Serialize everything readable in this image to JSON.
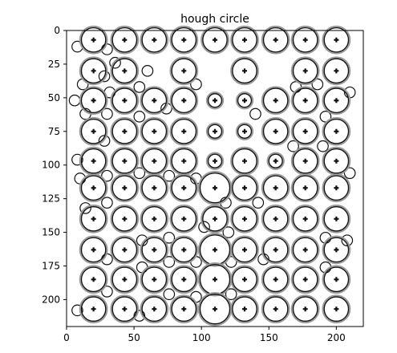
{
  "chart_data": {
    "type": "image",
    "title": "hough circle",
    "xlabel": "",
    "ylabel": "",
    "xlim": [
      0,
      220
    ],
    "ylim": [
      220,
      0
    ],
    "x_ticks": [
      0,
      50,
      100,
      150,
      200
    ],
    "y_ticks": [
      0,
      25,
      50,
      75,
      100,
      125,
      150,
      175,
      200
    ],
    "grid": false,
    "colors": {
      "ring": "#111111",
      "ring_faint": "#9a9a9a",
      "background": "#ffffff"
    },
    "circles": [
      {
        "x": 20,
        "y": 7,
        "r": 9
      },
      {
        "x": 43,
        "y": 7,
        "r": 9
      },
      {
        "x": 65,
        "y": 7,
        "r": 9
      },
      {
        "x": 87,
        "y": 7,
        "r": 9
      },
      {
        "x": 110,
        "y": 7,
        "r": 9
      },
      {
        "x": 132,
        "y": 7,
        "r": 9
      },
      {
        "x": 155,
        "y": 7,
        "r": 9
      },
      {
        "x": 177,
        "y": 7,
        "r": 9
      },
      {
        "x": 200,
        "y": 7,
        "r": 9
      },
      {
        "x": 20,
        "y": 30,
        "r": 9
      },
      {
        "x": 43,
        "y": 30,
        "r": 9
      },
      {
        "x": 87,
        "y": 30,
        "r": 9
      },
      {
        "x": 132,
        "y": 30,
        "r": 9
      },
      {
        "x": 177,
        "y": 30,
        "r": 9
      },
      {
        "x": 200,
        "y": 30,
        "r": 9
      },
      {
        "x": 20,
        "y": 52,
        "r": 9
      },
      {
        "x": 43,
        "y": 52,
        "r": 9
      },
      {
        "x": 65,
        "y": 52,
        "r": 9
      },
      {
        "x": 87,
        "y": 52,
        "r": 9
      },
      {
        "x": 110,
        "y": 52,
        "r": 5
      },
      {
        "x": 132,
        "y": 52,
        "r": 5
      },
      {
        "x": 155,
        "y": 52,
        "r": 9
      },
      {
        "x": 177,
        "y": 52,
        "r": 9
      },
      {
        "x": 200,
        "y": 52,
        "r": 9
      },
      {
        "x": 20,
        "y": 75,
        "r": 9
      },
      {
        "x": 43,
        "y": 75,
        "r": 9
      },
      {
        "x": 65,
        "y": 75,
        "r": 9
      },
      {
        "x": 87,
        "y": 75,
        "r": 9
      },
      {
        "x": 110,
        "y": 75,
        "r": 5
      },
      {
        "x": 132,
        "y": 75,
        "r": 5
      },
      {
        "x": 155,
        "y": 75,
        "r": 9
      },
      {
        "x": 177,
        "y": 75,
        "r": 9
      },
      {
        "x": 200,
        "y": 75,
        "r": 9
      },
      {
        "x": 20,
        "y": 97,
        "r": 9
      },
      {
        "x": 43,
        "y": 97,
        "r": 9
      },
      {
        "x": 65,
        "y": 97,
        "r": 9
      },
      {
        "x": 87,
        "y": 97,
        "r": 9
      },
      {
        "x": 110,
        "y": 97,
        "r": 5
      },
      {
        "x": 132,
        "y": 97,
        "r": 9
      },
      {
        "x": 155,
        "y": 97,
        "r": 5
      },
      {
        "x": 177,
        "y": 97,
        "r": 9
      },
      {
        "x": 200,
        "y": 97,
        "r": 9
      },
      {
        "x": 20,
        "y": 117,
        "r": 9
      },
      {
        "x": 43,
        "y": 117,
        "r": 9
      },
      {
        "x": 65,
        "y": 117,
        "r": 9
      },
      {
        "x": 87,
        "y": 117,
        "r": 9
      },
      {
        "x": 110,
        "y": 117,
        "r": 11
      },
      {
        "x": 132,
        "y": 117,
        "r": 9
      },
      {
        "x": 155,
        "y": 117,
        "r": 9
      },
      {
        "x": 177,
        "y": 117,
        "r": 9
      },
      {
        "x": 200,
        "y": 117,
        "r": 9
      },
      {
        "x": 20,
        "y": 140,
        "r": 9
      },
      {
        "x": 43,
        "y": 140,
        "r": 9
      },
      {
        "x": 65,
        "y": 140,
        "r": 9
      },
      {
        "x": 87,
        "y": 140,
        "r": 9
      },
      {
        "x": 110,
        "y": 140,
        "r": 9
      },
      {
        "x": 132,
        "y": 140,
        "r": 9
      },
      {
        "x": 155,
        "y": 140,
        "r": 9
      },
      {
        "x": 177,
        "y": 140,
        "r": 9
      },
      {
        "x": 200,
        "y": 140,
        "r": 9
      },
      {
        "x": 20,
        "y": 163,
        "r": 9
      },
      {
        "x": 43,
        "y": 163,
        "r": 9
      },
      {
        "x": 65,
        "y": 163,
        "r": 9
      },
      {
        "x": 87,
        "y": 163,
        "r": 9
      },
      {
        "x": 110,
        "y": 163,
        "r": 11
      },
      {
        "x": 132,
        "y": 163,
        "r": 9
      },
      {
        "x": 155,
        "y": 163,
        "r": 9
      },
      {
        "x": 177,
        "y": 163,
        "r": 9
      },
      {
        "x": 200,
        "y": 163,
        "r": 9
      },
      {
        "x": 20,
        "y": 185,
        "r": 9
      },
      {
        "x": 43,
        "y": 185,
        "r": 9
      },
      {
        "x": 65,
        "y": 185,
        "r": 9
      },
      {
        "x": 87,
        "y": 185,
        "r": 9
      },
      {
        "x": 110,
        "y": 185,
        "r": 11
      },
      {
        "x": 132,
        "y": 185,
        "r": 9
      },
      {
        "x": 155,
        "y": 185,
        "r": 9
      },
      {
        "x": 177,
        "y": 185,
        "r": 9
      },
      {
        "x": 200,
        "y": 185,
        "r": 9
      },
      {
        "x": 20,
        "y": 207,
        "r": 9
      },
      {
        "x": 43,
        "y": 207,
        "r": 9
      },
      {
        "x": 65,
        "y": 207,
        "r": 9
      },
      {
        "x": 87,
        "y": 207,
        "r": 9
      },
      {
        "x": 110,
        "y": 207,
        "r": 11
      },
      {
        "x": 132,
        "y": 207,
        "r": 9
      },
      {
        "x": 155,
        "y": 207,
        "r": 9
      },
      {
        "x": 177,
        "y": 207,
        "r": 9
      },
      {
        "x": 200,
        "y": 207,
        "r": 9
      }
    ],
    "small_circles": [
      {
        "x": 8,
        "y": 12,
        "r": 4
      },
      {
        "x": 30,
        "y": 14,
        "r": 4
      },
      {
        "x": 36,
        "y": 24,
        "r": 4
      },
      {
        "x": 28,
        "y": 34,
        "r": 4
      },
      {
        "x": 12,
        "y": 40,
        "r": 4
      },
      {
        "x": 6,
        "y": 52,
        "r": 4
      },
      {
        "x": 32,
        "y": 46,
        "r": 4
      },
      {
        "x": 54,
        "y": 42,
        "r": 4
      },
      {
        "x": 60,
        "y": 30,
        "r": 4
      },
      {
        "x": 14,
        "y": 62,
        "r": 4
      },
      {
        "x": 30,
        "y": 62,
        "r": 4
      },
      {
        "x": 54,
        "y": 64,
        "r": 4
      },
      {
        "x": 74,
        "y": 58,
        "r": 4
      },
      {
        "x": 96,
        "y": 40,
        "r": 4
      },
      {
        "x": 140,
        "y": 62,
        "r": 4
      },
      {
        "x": 170,
        "y": 42,
        "r": 4
      },
      {
        "x": 186,
        "y": 40,
        "r": 4
      },
      {
        "x": 192,
        "y": 64,
        "r": 4
      },
      {
        "x": 210,
        "y": 46,
        "r": 4
      },
      {
        "x": 190,
        "y": 86,
        "r": 4
      },
      {
        "x": 168,
        "y": 86,
        "r": 4
      },
      {
        "x": 210,
        "y": 106,
        "r": 4
      },
      {
        "x": 28,
        "y": 82,
        "r": 4
      },
      {
        "x": 8,
        "y": 96,
        "r": 4
      },
      {
        "x": 10,
        "y": 110,
        "r": 4
      },
      {
        "x": 30,
        "y": 108,
        "r": 4
      },
      {
        "x": 54,
        "y": 106,
        "r": 4
      },
      {
        "x": 76,
        "y": 108,
        "r": 4
      },
      {
        "x": 96,
        "y": 110,
        "r": 4
      },
      {
        "x": 118,
        "y": 128,
        "r": 4
      },
      {
        "x": 142,
        "y": 128,
        "r": 4
      },
      {
        "x": 30,
        "y": 128,
        "r": 4
      },
      {
        "x": 14,
        "y": 132,
        "r": 4
      },
      {
        "x": 102,
        "y": 146,
        "r": 4
      },
      {
        "x": 120,
        "y": 150,
        "r": 4
      },
      {
        "x": 56,
        "y": 156,
        "r": 4
      },
      {
        "x": 76,
        "y": 154,
        "r": 4
      },
      {
        "x": 30,
        "y": 170,
        "r": 4
      },
      {
        "x": 56,
        "y": 176,
        "r": 4
      },
      {
        "x": 76,
        "y": 172,
        "r": 4
      },
      {
        "x": 96,
        "y": 172,
        "r": 4
      },
      {
        "x": 122,
        "y": 172,
        "r": 4
      },
      {
        "x": 146,
        "y": 170,
        "r": 4
      },
      {
        "x": 192,
        "y": 154,
        "r": 4
      },
      {
        "x": 208,
        "y": 156,
        "r": 4
      },
      {
        "x": 30,
        "y": 194,
        "r": 4
      },
      {
        "x": 76,
        "y": 196,
        "r": 4
      },
      {
        "x": 96,
        "y": 198,
        "r": 4
      },
      {
        "x": 122,
        "y": 196,
        "r": 4
      },
      {
        "x": 192,
        "y": 176,
        "r": 4
      },
      {
        "x": 8,
        "y": 208,
        "r": 4
      },
      {
        "x": 54,
        "y": 212,
        "r": 4
      }
    ]
  }
}
